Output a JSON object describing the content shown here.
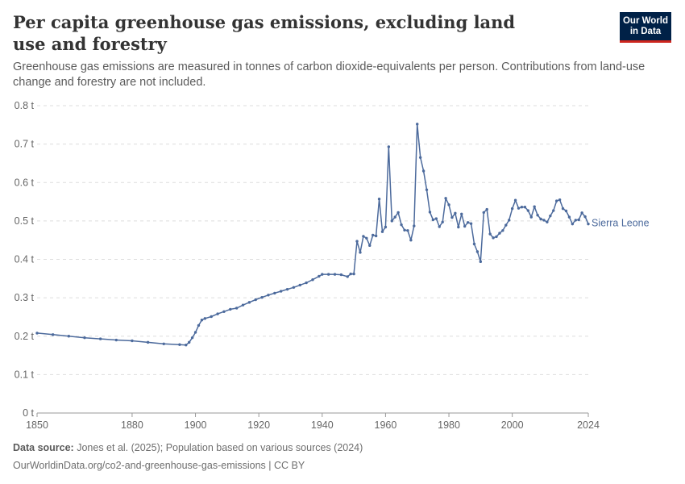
{
  "header": {
    "title": "Per capita greenhouse gas emissions, excluding land use and forestry",
    "subtitle": "Greenhouse gas emissions are measured in tonnes of carbon dioxide-equivalents per person. Contributions from land-use change and forestry are not included.",
    "logo_line1": "Our World",
    "logo_line2": "in Data"
  },
  "footer": {
    "source_label": "Data source:",
    "source_text": "Jones et al. (2025); Population based on various sources (2024)",
    "url_text": "OurWorldinData.org/co2-and-greenhouse-gas-emissions | CC BY"
  },
  "colors": {
    "series": "#4c6a9c",
    "grid": "#dddddd",
    "text": "#666666"
  },
  "chart_data": {
    "type": "line",
    "title": "Per capita greenhouse gas emissions, excluding land use and forestry",
    "xlim": [
      1850,
      2024
    ],
    "ylim": [
      0,
      0.8
    ],
    "x_ticks": [
      1850,
      1880,
      1900,
      1920,
      1940,
      1960,
      1980,
      2000,
      2024
    ],
    "y_ticks": [
      {
        "value": 0,
        "label": "0 t"
      },
      {
        "value": 0.1,
        "label": "0.1 t"
      },
      {
        "value": 0.2,
        "label": "0.2 t"
      },
      {
        "value": 0.3,
        "label": "0.3 t"
      },
      {
        "value": 0.4,
        "label": "0.4 t"
      },
      {
        "value": 0.5,
        "label": "0.5 t"
      },
      {
        "value": 0.6,
        "label": "0.6 t"
      },
      {
        "value": 0.7,
        "label": "0.7 t"
      },
      {
        "value": 0.8,
        "label": "0.8 t"
      }
    ],
    "grid": true,
    "series": [
      {
        "name": "Sierra Leone",
        "color": "#4c6a9c",
        "points": [
          [
            1850,
            0.208
          ],
          [
            1855,
            0.204
          ],
          [
            1860,
            0.2
          ],
          [
            1865,
            0.196
          ],
          [
            1870,
            0.193
          ],
          [
            1875,
            0.19
          ],
          [
            1880,
            0.188
          ],
          [
            1885,
            0.184
          ],
          [
            1890,
            0.18
          ],
          [
            1895,
            0.178
          ],
          [
            1897,
            0.177
          ],
          [
            1898,
            0.184
          ],
          [
            1899,
            0.196
          ],
          [
            1900,
            0.21
          ],
          [
            1901,
            0.228
          ],
          [
            1902,
            0.242
          ],
          [
            1903,
            0.246
          ],
          [
            1905,
            0.251
          ],
          [
            1907,
            0.258
          ],
          [
            1909,
            0.264
          ],
          [
            1911,
            0.27
          ],
          [
            1913,
            0.273
          ],
          [
            1915,
            0.281
          ],
          [
            1917,
            0.288
          ],
          [
            1919,
            0.295
          ],
          [
            1921,
            0.301
          ],
          [
            1923,
            0.307
          ],
          [
            1925,
            0.312
          ],
          [
            1927,
            0.317
          ],
          [
            1929,
            0.322
          ],
          [
            1931,
            0.327
          ],
          [
            1933,
            0.333
          ],
          [
            1935,
            0.339
          ],
          [
            1937,
            0.347
          ],
          [
            1939,
            0.356
          ],
          [
            1940,
            0.361
          ],
          [
            1942,
            0.361
          ],
          [
            1944,
            0.361
          ],
          [
            1946,
            0.36
          ],
          [
            1948,
            0.355
          ],
          [
            1949,
            0.362
          ],
          [
            1950,
            0.362
          ],
          [
            1951,
            0.447
          ],
          [
            1952,
            0.418
          ],
          [
            1953,
            0.46
          ],
          [
            1954,
            0.455
          ],
          [
            1955,
            0.436
          ],
          [
            1956,
            0.463
          ],
          [
            1957,
            0.461
          ],
          [
            1958,
            0.557
          ],
          [
            1959,
            0.472
          ],
          [
            1960,
            0.484
          ],
          [
            1961,
            0.693
          ],
          [
            1962,
            0.5
          ],
          [
            1963,
            0.51
          ],
          [
            1964,
            0.522
          ],
          [
            1965,
            0.49
          ],
          [
            1966,
            0.476
          ],
          [
            1967,
            0.475
          ],
          [
            1968,
            0.45
          ],
          [
            1969,
            0.487
          ],
          [
            1970,
            0.752
          ],
          [
            1971,
            0.665
          ],
          [
            1972,
            0.63
          ],
          [
            1973,
            0.581
          ],
          [
            1974,
            0.523
          ],
          [
            1975,
            0.503
          ],
          [
            1976,
            0.506
          ],
          [
            1977,
            0.485
          ],
          [
            1978,
            0.497
          ],
          [
            1979,
            0.559
          ],
          [
            1980,
            0.542
          ],
          [
            1981,
            0.509
          ],
          [
            1982,
            0.52
          ],
          [
            1983,
            0.484
          ],
          [
            1984,
            0.518
          ],
          [
            1985,
            0.486
          ],
          [
            1986,
            0.496
          ],
          [
            1987,
            0.493
          ],
          [
            1988,
            0.44
          ],
          [
            1989,
            0.42
          ],
          [
            1990,
            0.394
          ],
          [
            1991,
            0.522
          ],
          [
            1992,
            0.53
          ],
          [
            1993,
            0.466
          ],
          [
            1994,
            0.456
          ],
          [
            1995,
            0.459
          ],
          [
            1996,
            0.468
          ],
          [
            1997,
            0.475
          ],
          [
            1998,
            0.489
          ],
          [
            1999,
            0.502
          ],
          [
            2000,
            0.532
          ],
          [
            2001,
            0.554
          ],
          [
            2002,
            0.533
          ],
          [
            2003,
            0.536
          ],
          [
            2004,
            0.536
          ],
          [
            2005,
            0.527
          ],
          [
            2006,
            0.51
          ],
          [
            2007,
            0.537
          ],
          [
            2008,
            0.515
          ],
          [
            2009,
            0.505
          ],
          [
            2010,
            0.502
          ],
          [
            2011,
            0.497
          ],
          [
            2012,
            0.513
          ],
          [
            2013,
            0.527
          ],
          [
            2014,
            0.552
          ],
          [
            2015,
            0.555
          ],
          [
            2016,
            0.532
          ],
          [
            2017,
            0.526
          ],
          [
            2018,
            0.51
          ],
          [
            2019,
            0.492
          ],
          [
            2020,
            0.502
          ],
          [
            2021,
            0.503
          ],
          [
            2022,
            0.521
          ],
          [
            2023,
            0.511
          ],
          [
            2024,
            0.492
          ]
        ]
      }
    ]
  }
}
